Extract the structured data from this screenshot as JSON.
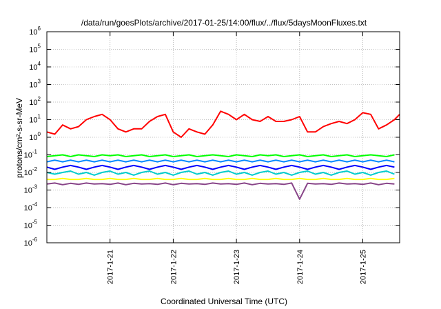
{
  "chart_data": {
    "type": "line",
    "title": "/data/run/goesPlots/archive/2017-01-25/14:00/flux/../flux/5daysMoonFluxes.txt",
    "xlabel": "Coordinated Universal Time (UTC)",
    "ylabel": "protons/cm²-s-sr-MeV",
    "yscale": "log",
    "ylim": [
      1e-06,
      1000000.0
    ],
    "xlim": [
      "2017-01-20 00:00",
      "2017-01-25 14:00"
    ],
    "grid": true,
    "legend": "none",
    "y_ticks": [
      {
        "value": 1e-06,
        "base": "10",
        "exp": "-6"
      },
      {
        "value": 1e-05,
        "base": "10",
        "exp": "-5"
      },
      {
        "value": 0.0001,
        "base": "10",
        "exp": "-4"
      },
      {
        "value": 0.001,
        "base": "10",
        "exp": "-3"
      },
      {
        "value": 0.01,
        "base": "10",
        "exp": "-2"
      },
      {
        "value": 0.1,
        "base": "10",
        "exp": "-1"
      },
      {
        "value": 1.0,
        "base": "10",
        "exp": "0"
      },
      {
        "value": 10.0,
        "base": "10",
        "exp": "1"
      },
      {
        "value": 100.0,
        "base": "10",
        "exp": "2"
      },
      {
        "value": 1000.0,
        "base": "10",
        "exp": "3"
      },
      {
        "value": 10000.0,
        "base": "10",
        "exp": "4"
      },
      {
        "value": 100000.0,
        "base": "10",
        "exp": "5"
      },
      {
        "value": 1000000.0,
        "base": "10",
        "exp": "6"
      }
    ],
    "x_ticks": [
      {
        "date": "2017-01-21 00:00",
        "label": "2017-1-21"
      },
      {
        "date": "2017-01-22 00:00",
        "label": "2017-1-22"
      },
      {
        "date": "2017-01-23 00:00",
        "label": "2017-1-23"
      },
      {
        "date": "2017-01-24 00:00",
        "label": "2017-1-24"
      },
      {
        "date": "2017-01-25 00:00",
        "label": "2017-1-25"
      }
    ],
    "series": [
      {
        "color": "#ff0000",
        "x": [
          "2017-01-20 00:00",
          "2017-01-20 03:00",
          "2017-01-20 06:00",
          "2017-01-20 09:00",
          "2017-01-20 12:00",
          "2017-01-20 15:00",
          "2017-01-20 18:00",
          "2017-01-20 21:00",
          "2017-01-21 00:00",
          "2017-01-21 03:00",
          "2017-01-21 06:00",
          "2017-01-21 09:00",
          "2017-01-21 12:00",
          "2017-01-21 15:00",
          "2017-01-21 18:00",
          "2017-01-21 21:00",
          "2017-01-22 00:00",
          "2017-01-22 03:00",
          "2017-01-22 06:00",
          "2017-01-22 09:00",
          "2017-01-22 12:00",
          "2017-01-22 15:00",
          "2017-01-22 18:00",
          "2017-01-22 21:00",
          "2017-01-23 00:00",
          "2017-01-23 03:00",
          "2017-01-23 06:00",
          "2017-01-23 09:00",
          "2017-01-23 12:00",
          "2017-01-23 15:00",
          "2017-01-23 18:00",
          "2017-01-23 21:00",
          "2017-01-24 00:00",
          "2017-01-24 03:00",
          "2017-01-24 06:00",
          "2017-01-24 09:00",
          "2017-01-24 12:00",
          "2017-01-24 15:00",
          "2017-01-24 18:00",
          "2017-01-24 21:00",
          "2017-01-25 00:00",
          "2017-01-25 03:00",
          "2017-01-25 06:00",
          "2017-01-25 09:00",
          "2017-01-25 12:00",
          "2017-01-25 14:00"
        ],
        "values": [
          2,
          1.5,
          5,
          3,
          4,
          10,
          15,
          20,
          10,
          3,
          2,
          3,
          3,
          8,
          15,
          20,
          2,
          1,
          3,
          2,
          1.5,
          5,
          30,
          20,
          10,
          20,
          10,
          8,
          15,
          8,
          8,
          10,
          15,
          2,
          2,
          4,
          6,
          8,
          6,
          10,
          25,
          20,
          3,
          5,
          10,
          20
        ]
      },
      {
        "color": "#00ff00",
        "x_start": "2017-01-20 00:00",
        "x_step_hours": 3,
        "values": [
          0.08,
          0.09,
          0.1,
          0.08,
          0.1,
          0.09,
          0.08,
          0.1,
          0.09,
          0.1,
          0.08,
          0.09,
          0.1,
          0.08,
          0.09,
          0.1,
          0.08,
          0.09,
          0.1,
          0.08,
          0.09,
          0.1,
          0.09,
          0.08,
          0.1,
          0.09,
          0.08,
          0.1,
          0.09,
          0.1,
          0.08,
          0.09,
          0.1,
          0.08,
          0.09,
          0.1,
          0.08,
          0.09,
          0.1,
          0.08,
          0.09,
          0.1,
          0.09,
          0.08,
          0.1
        ]
      },
      {
        "color": "#0088ff",
        "x_start": "2017-01-20 00:00",
        "x_step_hours": 3,
        "values": [
          0.04,
          0.05,
          0.04,
          0.05,
          0.04,
          0.05,
          0.04,
          0.05,
          0.04,
          0.05,
          0.04,
          0.05,
          0.04,
          0.05,
          0.04,
          0.05,
          0.04,
          0.05,
          0.04,
          0.05,
          0.04,
          0.05,
          0.04,
          0.05,
          0.04,
          0.05,
          0.04,
          0.05,
          0.04,
          0.05,
          0.04,
          0.05,
          0.04,
          0.05,
          0.04,
          0.05,
          0.04,
          0.05,
          0.04,
          0.05,
          0.04,
          0.05,
          0.04,
          0.05,
          0.04
        ]
      },
      {
        "color": "#0000ff",
        "x_start": "2017-01-20 00:00",
        "x_step_hours": 3,
        "values": [
          0.02,
          0.015,
          0.02,
          0.025,
          0.02,
          0.015,
          0.02,
          0.025,
          0.02,
          0.015,
          0.02,
          0.025,
          0.02,
          0.015,
          0.02,
          0.025,
          0.02,
          0.015,
          0.02,
          0.025,
          0.02,
          0.015,
          0.02,
          0.025,
          0.02,
          0.015,
          0.02,
          0.025,
          0.02,
          0.015,
          0.02,
          0.025,
          0.02,
          0.015,
          0.02,
          0.025,
          0.02,
          0.015,
          0.02,
          0.025,
          0.02,
          0.015,
          0.02,
          0.025,
          0.02
        ]
      },
      {
        "color": "#00cccc",
        "x_start": "2017-01-20 00:00",
        "x_step_hours": 3,
        "values": [
          0.01,
          0.008,
          0.01,
          0.012,
          0.008,
          0.01,
          0.007,
          0.01,
          0.012,
          0.008,
          0.01,
          0.007,
          0.01,
          0.012,
          0.008,
          0.01,
          0.007,
          0.01,
          0.012,
          0.008,
          0.01,
          0.007,
          0.01,
          0.012,
          0.008,
          0.01,
          0.007,
          0.01,
          0.012,
          0.008,
          0.01,
          0.007,
          0.01,
          0.012,
          0.008,
          0.01,
          0.007,
          0.01,
          0.012,
          0.008,
          0.01,
          0.007,
          0.01,
          0.012,
          0.008
        ]
      },
      {
        "color": "#ffff00",
        "x_start": "2017-01-20 00:00",
        "x_step_hours": 3,
        "values": [
          0.004,
          0.004,
          0.0045,
          0.004,
          0.004,
          0.0045,
          0.004,
          0.004,
          0.0045,
          0.004,
          0.004,
          0.0045,
          0.004,
          0.004,
          0.0045,
          0.004,
          0.004,
          0.0045,
          0.004,
          0.004,
          0.0045,
          0.004,
          0.004,
          0.0045,
          0.004,
          0.004,
          0.0045,
          0.004,
          0.004,
          0.0045,
          0.004,
          0.004,
          0.0045,
          0.004,
          0.004,
          0.0045,
          0.004,
          0.004,
          0.0045,
          0.004,
          0.004,
          0.0045,
          0.004,
          0.004,
          0.0045
        ]
      },
      {
        "color": "#884488",
        "x_start": "2017-01-20 00:00",
        "x_step_hours": 3,
        "values": [
          0.0022,
          0.0025,
          0.002,
          0.0024,
          0.0021,
          0.0025,
          0.0022,
          0.0023,
          0.0021,
          0.0025,
          0.002,
          0.0024,
          0.0022,
          0.0023,
          0.0021,
          0.0025,
          0.002,
          0.0024,
          0.0022,
          0.0023,
          0.0021,
          0.0025,
          0.0022,
          0.0023,
          0.0021,
          0.0025,
          0.002,
          0.0024,
          0.0022,
          0.0023,
          0.0021,
          0.0025,
          0.0003,
          0.0024,
          0.0022,
          0.0023,
          0.0021,
          0.0025,
          0.0022,
          0.0023,
          0.0021,
          0.0025,
          0.002,
          0.0024,
          0.0022
        ]
      }
    ]
  }
}
